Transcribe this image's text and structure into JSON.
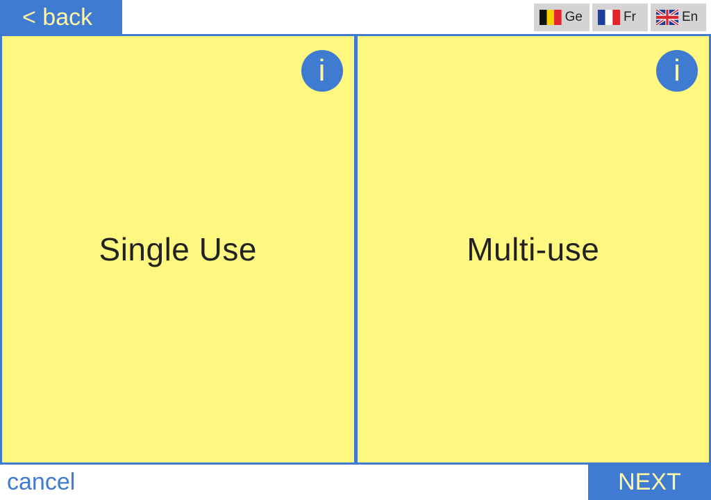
{
  "header": {
    "back_label": "< back",
    "languages": [
      {
        "code_label": "Ge",
        "flag": "belgium-flag-icon"
      },
      {
        "code_label": "Fr",
        "flag": "france-flag-icon"
      },
      {
        "code_label": "En",
        "flag": "uk-flag-icon"
      }
    ]
  },
  "options": [
    {
      "label": "Single Use",
      "info_icon": "i"
    },
    {
      "label": "Multi-use",
      "info_icon": "i"
    }
  ],
  "footer": {
    "cancel_label": "cancel",
    "next_label": "NEXT"
  },
  "colors": {
    "accent_blue": "#3f7bd1",
    "panel_yellow": "#fff880",
    "button_text_yellow": "#fff7a6",
    "lang_button_gray": "#d4d4d4"
  }
}
